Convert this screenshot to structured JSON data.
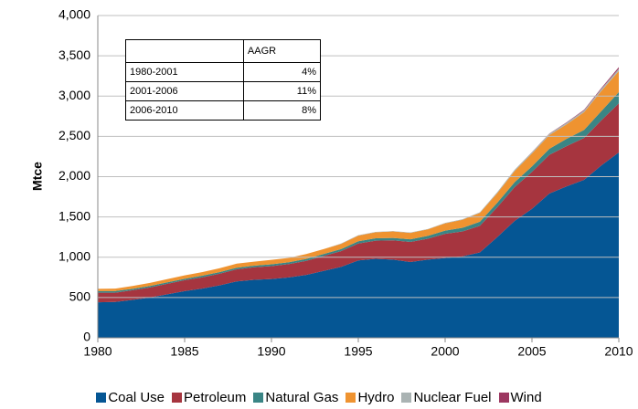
{
  "chart_data": {
    "type": "area",
    "y_label": "Mtce",
    "x": [
      1980,
      1981,
      1982,
      1983,
      1984,
      1985,
      1986,
      1987,
      1988,
      1989,
      1990,
      1991,
      1992,
      1993,
      1994,
      1995,
      1996,
      1997,
      1998,
      1999,
      2000,
      2001,
      2002,
      2003,
      2004,
      2005,
      2006,
      2007,
      2008,
      2009,
      2010
    ],
    "series": [
      {
        "name": "Coal Use",
        "color": "#055694",
        "values": [
          440,
          445,
          470,
          500,
          540,
          580,
          610,
          650,
          700,
          720,
          730,
          750,
          780,
          830,
          880,
          960,
          980,
          970,
          940,
          970,
          990,
          1010,
          1060,
          1250,
          1450,
          1600,
          1790,
          1880,
          1960,
          2140,
          2300
        ]
      },
      {
        "name": "Petroleum",
        "color": "#a6353f",
        "values": [
          120,
          115,
          120,
          125,
          130,
          135,
          140,
          145,
          150,
          155,
          160,
          165,
          175,
          185,
          195,
          210,
          225,
          240,
          250,
          260,
          300,
          310,
          330,
          370,
          420,
          460,
          480,
          500,
          520,
          560,
          610
        ]
      },
      {
        "name": "Natural Gas",
        "color": "#3a8585",
        "values": [
          20,
          20,
          18,
          18,
          18,
          18,
          20,
          20,
          20,
          20,
          22,
          22,
          24,
          25,
          25,
          28,
          30,
          30,
          32,
          35,
          40,
          45,
          50,
          55,
          60,
          68,
          75,
          90,
          100,
          115,
          140
        ]
      },
      {
        "name": "Hydro",
        "color": "#ef9330",
        "values": [
          28,
          30,
          35,
          38,
          40,
          42,
          45,
          48,
          50,
          50,
          55,
          55,
          60,
          60,
          65,
          70,
          75,
          80,
          80,
          80,
          90,
          100,
          110,
          120,
          140,
          160,
          170,
          180,
          220,
          250,
          260
        ]
      },
      {
        "name": "Nuclear Fuel",
        "color": "#aab3b3",
        "values": [
          0,
          0,
          0,
          0,
          0,
          0,
          0,
          0,
          0,
          0,
          0,
          0,
          0,
          0,
          5,
          5,
          5,
          5,
          5,
          5,
          6,
          6,
          8,
          12,
          15,
          17,
          18,
          20,
          22,
          25,
          30
        ]
      },
      {
        "name": "Wind",
        "color": "#9c3760",
        "values": [
          0,
          0,
          0,
          0,
          0,
          0,
          0,
          0,
          0,
          0,
          0,
          0,
          0,
          0,
          0,
          0,
          0,
          0,
          0,
          0,
          0,
          0,
          0,
          0,
          0,
          1,
          3,
          5,
          8,
          12,
          20
        ]
      }
    ],
    "xlim": [
      1980,
      2010
    ],
    "xticks": [
      1980,
      1985,
      1990,
      1995,
      2000,
      2005,
      2010
    ],
    "ylim": [
      0,
      4000
    ],
    "yticks": [
      0,
      500,
      {
        "value": 1000,
        "label": "1,000"
      },
      {
        "value": 1500,
        "label": "1,500"
      },
      {
        "value": 2000,
        "label": "2,000"
      },
      {
        "value": 2500,
        "label": "2,500"
      },
      {
        "value": 3000,
        "label": "3,000"
      },
      {
        "value": 3500,
        "label": "3,500"
      },
      {
        "value": 4000,
        "label": "4,000"
      }
    ],
    "grid": true
  },
  "table": {
    "header": "AAGR",
    "rows": [
      [
        "1980-2001",
        "4%"
      ],
      [
        "2001-2006",
        "11%"
      ],
      [
        "2006-2010",
        "8%"
      ]
    ]
  }
}
